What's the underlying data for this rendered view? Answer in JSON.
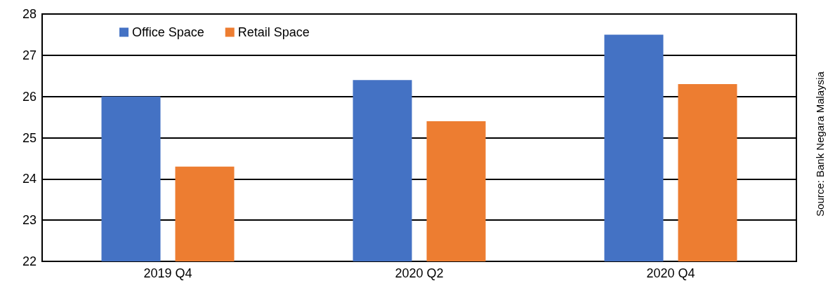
{
  "chart_data": {
    "type": "bar",
    "categories": [
      "2019 Q4",
      "2020 Q2",
      "2020 Q4"
    ],
    "series": [
      {
        "name": "Office Space",
        "color": "#4472c4",
        "values": [
          26.0,
          26.4,
          27.5
        ]
      },
      {
        "name": "Retail Space",
        "color": "#ed7d31",
        "values": [
          24.3,
          25.4,
          26.3
        ]
      }
    ],
    "ylim": [
      22,
      28
    ],
    "yticks": [
      22,
      23,
      24,
      25,
      26,
      27,
      28
    ],
    "grid": "y",
    "legend": "top",
    "annotations": [
      "Source: Bank Negara Malaysia"
    ]
  }
}
